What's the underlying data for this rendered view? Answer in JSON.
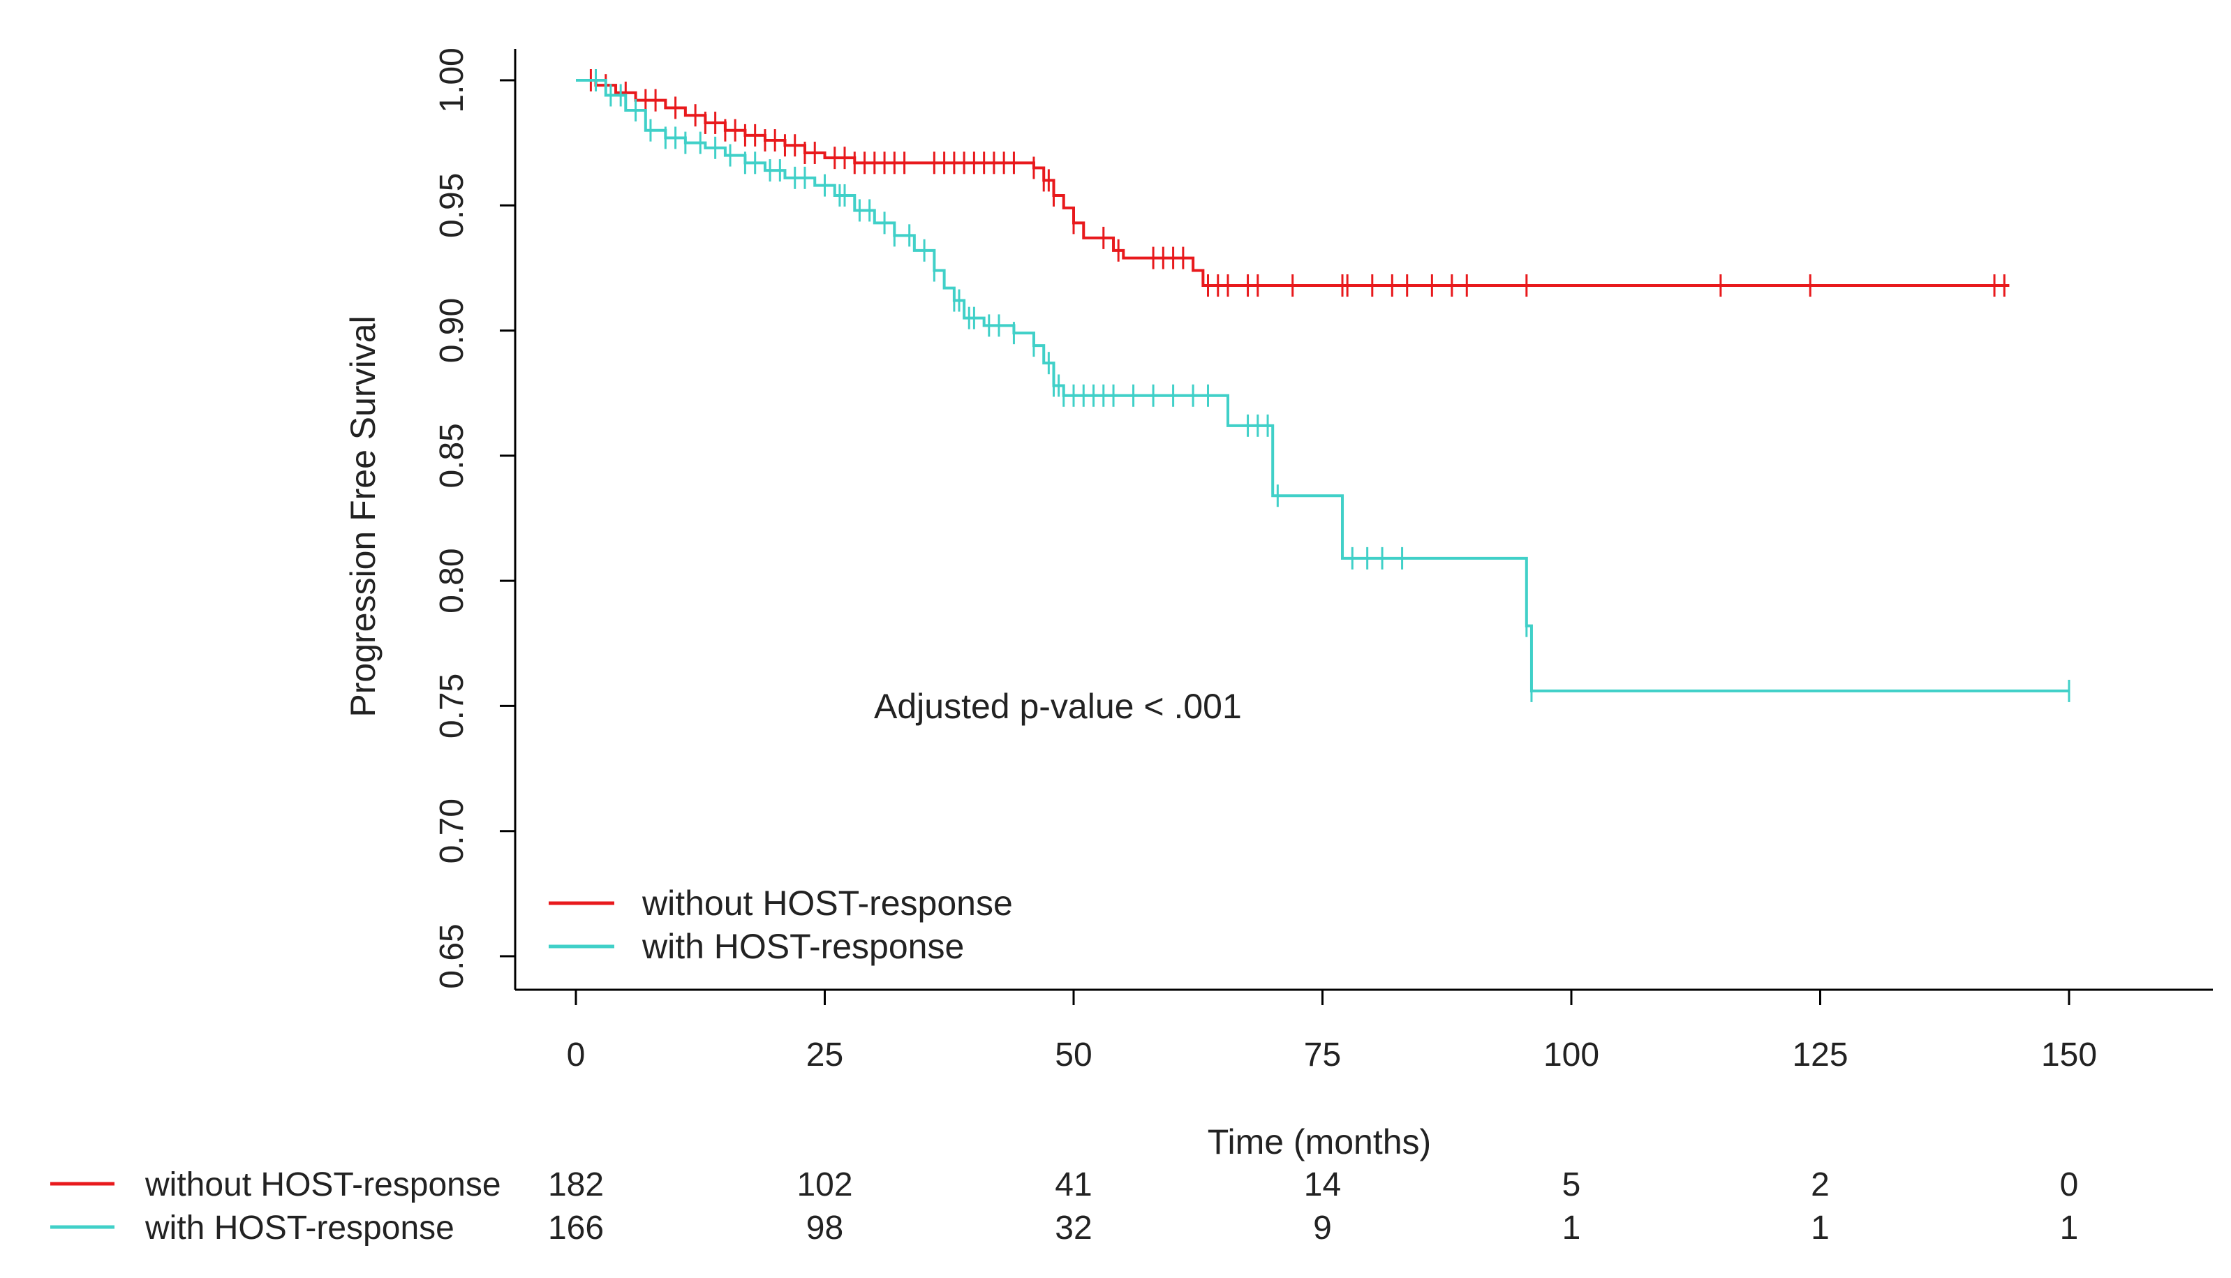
{
  "chart_data": {
    "type": "line",
    "subtype": "kaplan-meier",
    "xlabel": "Time (months)",
    "ylabel": "Progression Free Survival",
    "xlim": [
      -6,
      165
    ],
    "ylim": [
      0.637,
      1.013
    ],
    "x_ticks": [
      0,
      25,
      50,
      75,
      100,
      125,
      150
    ],
    "y_ticks": [
      0.65,
      0.7,
      0.75,
      0.8,
      0.85,
      0.9,
      0.95,
      1.0
    ],
    "x_tick_labels": [
      "0",
      "25",
      "50",
      "75",
      "100",
      "125",
      "150"
    ],
    "y_tick_labels": [
      "0.65",
      "0.70",
      "0.75",
      "0.80",
      "0.85",
      "0.90",
      "0.95",
      "1.00"
    ],
    "annotation": "Adjusted p-value < .001",
    "legend": {
      "position": "bottom-left",
      "entries": [
        "without HOST-response",
        "with HOST-response"
      ]
    },
    "series": [
      {
        "name": "without HOST-response",
        "color": "#e8191c",
        "steps": [
          [
            0,
            1.0
          ],
          [
            2,
            0.998
          ],
          [
            4,
            0.995
          ],
          [
            6,
            0.992
          ],
          [
            9,
            0.989
          ],
          [
            11,
            0.986
          ],
          [
            13,
            0.983
          ],
          [
            15,
            0.98
          ],
          [
            17,
            0.978
          ],
          [
            19,
            0.976
          ],
          [
            21,
            0.974
          ],
          [
            23,
            0.971
          ],
          [
            25,
            0.969
          ],
          [
            28,
            0.967
          ],
          [
            46,
            0.965
          ],
          [
            47,
            0.96
          ],
          [
            48,
            0.954
          ],
          [
            49,
            0.949
          ],
          [
            50,
            0.943
          ],
          [
            51,
            0.937
          ],
          [
            54,
            0.932
          ],
          [
            55,
            0.929
          ],
          [
            62,
            0.924
          ],
          [
            63,
            0.918
          ],
          [
            144,
            0.918
          ]
        ],
        "censors": [
          1.5,
          3,
          5,
          7,
          8,
          10,
          12,
          13,
          14,
          15,
          16,
          17,
          18,
          19,
          20,
          21,
          22,
          23,
          24,
          26,
          27,
          28,
          29,
          30,
          31,
          32,
          33,
          36,
          37,
          38,
          39,
          40,
          41,
          42,
          43,
          44,
          46,
          47,
          47.5,
          48,
          50,
          53,
          54.5,
          58,
          59,
          60,
          61,
          63.5,
          64.5,
          65.5,
          67.5,
          68.5,
          72,
          77,
          77.5,
          80,
          82,
          83.5,
          86,
          88,
          89.5,
          95.5,
          115,
          124,
          142.5,
          143.5
        ]
      },
      {
        "name": "with HOST-response",
        "color": "#40d0c8",
        "steps": [
          [
            0,
            1.0
          ],
          [
            3,
            0.994
          ],
          [
            5,
            0.988
          ],
          [
            7,
            0.98
          ],
          [
            9,
            0.977
          ],
          [
            11,
            0.975
          ],
          [
            13,
            0.973
          ],
          [
            15,
            0.97
          ],
          [
            17,
            0.967
          ],
          [
            19,
            0.964
          ],
          [
            21,
            0.961
          ],
          [
            24,
            0.958
          ],
          [
            26,
            0.954
          ],
          [
            28,
            0.948
          ],
          [
            30,
            0.943
          ],
          [
            32,
            0.938
          ],
          [
            34,
            0.932
          ],
          [
            36,
            0.924
          ],
          [
            37,
            0.917
          ],
          [
            38,
            0.912
          ],
          [
            39,
            0.905
          ],
          [
            41,
            0.902
          ],
          [
            44,
            0.899
          ],
          [
            46,
            0.894
          ],
          [
            47,
            0.887
          ],
          [
            48,
            0.878
          ],
          [
            49,
            0.874
          ],
          [
            65.5,
            0.862
          ],
          [
            70,
            0.834
          ],
          [
            77,
            0.809
          ],
          [
            95.5,
            0.782
          ],
          [
            96,
            0.756
          ],
          [
            150,
            0.756
          ]
        ],
        "censors": [
          2,
          3.5,
          4.5,
          6,
          7.5,
          9,
          10,
          11,
          12.5,
          14,
          15.5,
          17,
          18,
          19.5,
          20.5,
          22,
          23,
          25,
          26.5,
          27,
          28.5,
          29.5,
          31,
          32,
          33.5,
          35,
          36,
          38,
          38.5,
          39.5,
          40,
          41.5,
          42.5,
          44,
          46,
          47.5,
          48,
          48.5,
          49,
          50,
          51,
          52,
          53,
          54,
          56,
          58,
          60,
          62,
          63.5,
          67.5,
          68.5,
          69.5,
          70.5,
          78,
          79.5,
          81,
          83,
          95.5,
          96,
          150
        ]
      }
    ],
    "risk_table": {
      "times": [
        0,
        25,
        50,
        75,
        100,
        125,
        150
      ],
      "rows": [
        {
          "name": "without HOST-response",
          "color": "#e8191c",
          "counts": [
            "182",
            "102",
            "41",
            "14",
            "5",
            "2",
            "0"
          ]
        },
        {
          "name": "with HOST-response",
          "color": "#40d0c8",
          "counts": [
            "166",
            "98",
            "32",
            "9",
            "1",
            "1",
            "1"
          ]
        }
      ]
    }
  }
}
